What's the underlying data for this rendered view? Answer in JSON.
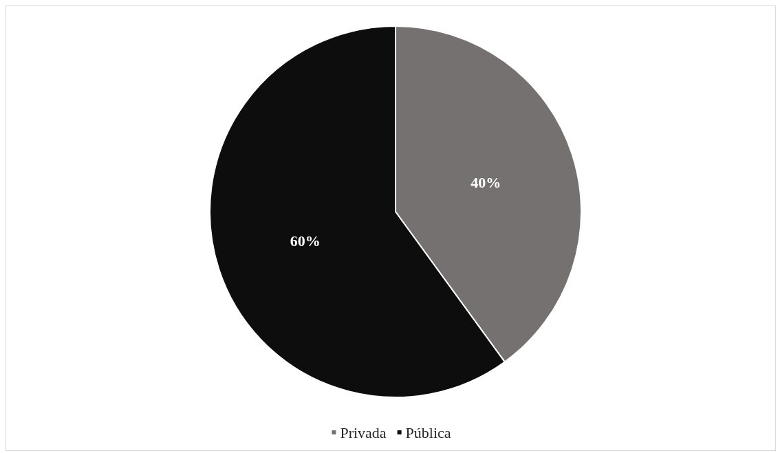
{
  "chart_data": {
    "type": "pie",
    "categories": [
      "Privada",
      "Pública"
    ],
    "values": [
      40,
      60
    ],
    "colors": [
      "#767171",
      "#0d0d0d"
    ],
    "value_labels": [
      "40%",
      "60%"
    ],
    "legend": "bottom"
  }
}
